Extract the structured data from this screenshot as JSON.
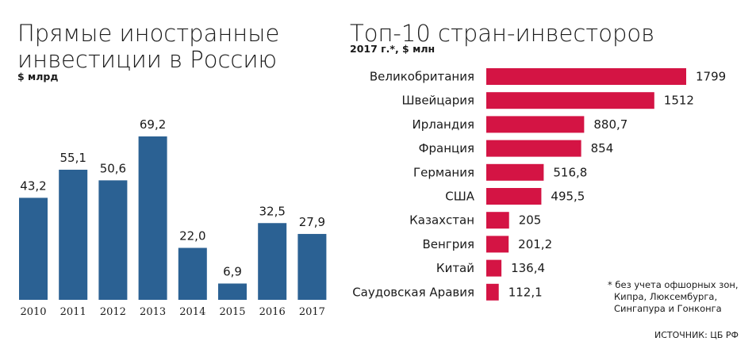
{
  "chart_data": [
    {
      "type": "bar",
      "title": [
        "Прямые иностранные",
        "инвестиции в Россию"
      ],
      "subtitle": "$ млрд",
      "categories": [
        "2010",
        "2011",
        "2012",
        "2013",
        "2014",
        "2015",
        "2016",
        "2017"
      ],
      "values": [
        43.2,
        55.1,
        50.6,
        69.2,
        22.0,
        6.9,
        32.5,
        27.9
      ],
      "value_labels": [
        "43,2",
        "55,1",
        "50,6",
        "69,2",
        "22,0",
        "6,9",
        "32,5",
        "27,9"
      ],
      "ylim": [
        0,
        80
      ],
      "color": "#2b6193",
      "grid": false
    },
    {
      "type": "bar",
      "orientation": "horizontal",
      "title": "Топ-10 стран-инвесторов",
      "subtitle": "2017 г.*, $ млн",
      "categories": [
        "Великобритания",
        "Швейцария",
        "Ирландия",
        "Франция",
        "Германия",
        "США",
        "Казахстан",
        "Венгрия",
        "Китай",
        "Саудовская Аравия"
      ],
      "values": [
        1799,
        1512,
        880.7,
        854,
        516.8,
        495.5,
        205,
        201.2,
        136.4,
        112.1
      ],
      "value_labels": [
        "1799",
        "1512",
        "880,7",
        "854",
        "516,8",
        "495,5",
        "205",
        "201,2",
        "136,4",
        "112,1"
      ],
      "xlim": [
        0,
        1800
      ],
      "color": "#d41444",
      "grid": false
    }
  ],
  "footnote": [
    "* без учета офшорных зон,",
    "Кипра, Люксембурга,",
    "Сингапура и Гонконга"
  ],
  "source": "ИСТОЧНИК: ЦБ РФ"
}
